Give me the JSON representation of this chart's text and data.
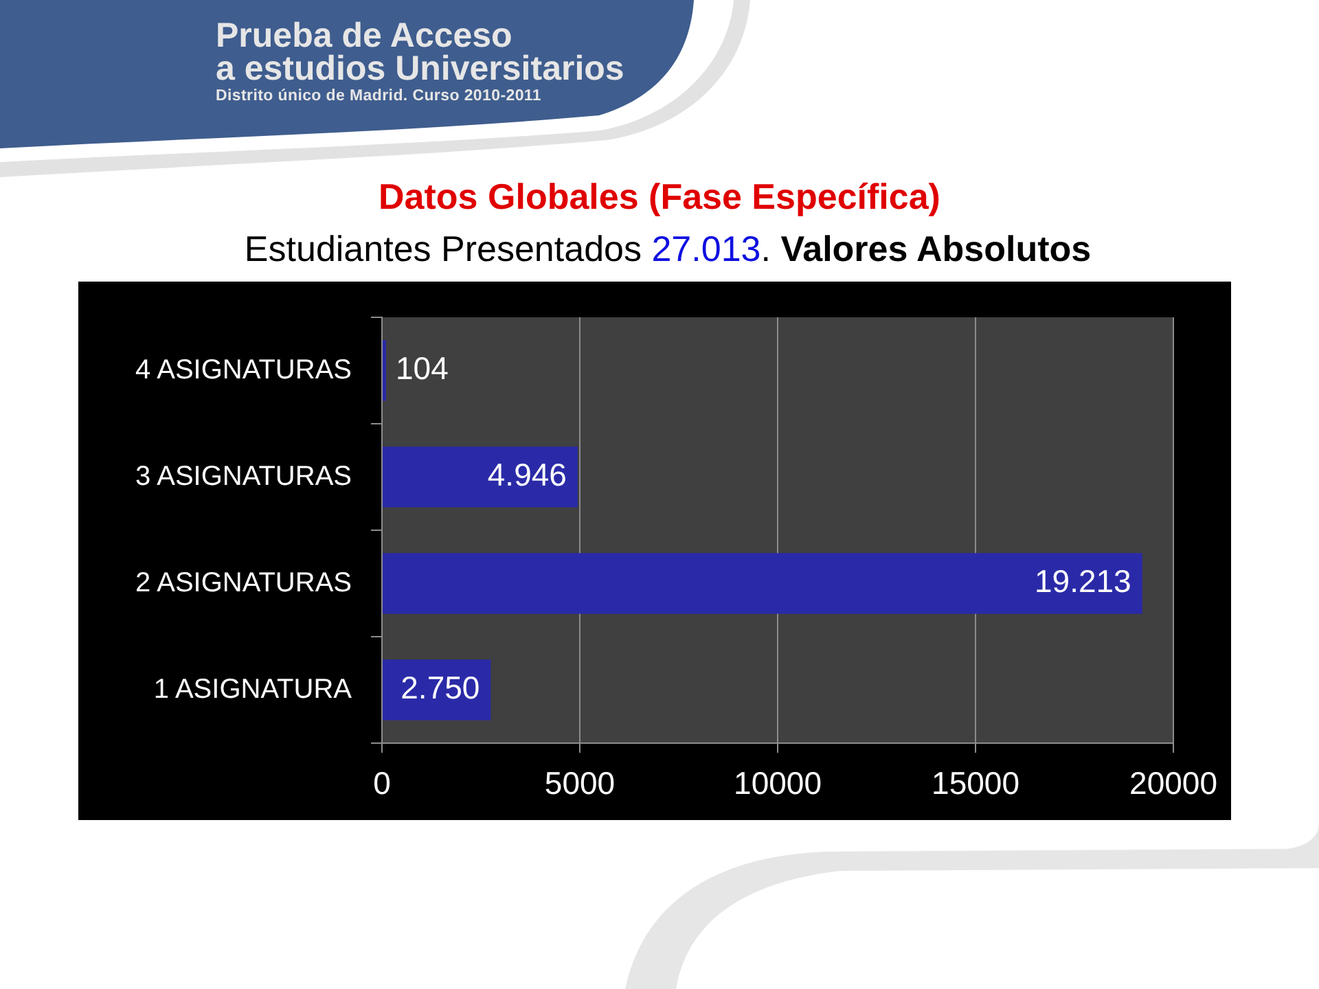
{
  "chart_data": {
    "type": "bar",
    "orientation": "horizontal",
    "title": "Datos Globales (Fase Específica)",
    "subtitle": "Estudiantes Presentados 27.013. Valores Absolutos",
    "annotations": [
      "Prueba de Acceso",
      "a estudios Universitarios",
      "Distrito único de Madrid. Curso 2010-2011"
    ],
    "categories": [
      "4 ASIGNATURAS",
      "3 ASIGNATURAS",
      "2 ASIGNATURAS",
      "1 ASIGNATURA"
    ],
    "values": [
      104,
      4946,
      19213,
      2750
    ],
    "value_labels": [
      "104",
      "4.946",
      "19.213",
      "2.750"
    ],
    "color": "#2a2aa8",
    "xlim": [
      0,
      20000
    ],
    "xticks": [
      0,
      5000,
      10000,
      15000,
      20000
    ],
    "grid": "x"
  }
}
